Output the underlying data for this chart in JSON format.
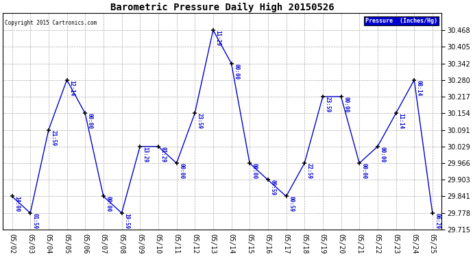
{
  "title": "Barometric Pressure Daily High 20150526",
  "legend_label": "Pressure  (Inches/Hg)",
  "copyright": "Copyright 2015 Cartronics.com",
  "x_labels": [
    "05/02",
    "05/03",
    "05/04",
    "05/05",
    "05/06",
    "05/07",
    "05/08",
    "05/09",
    "05/10",
    "05/11",
    "05/12",
    "05/13",
    "05/14",
    "05/15",
    "05/16",
    "05/17",
    "05/18",
    "05/19",
    "05/20",
    "05/21",
    "05/22",
    "05/23",
    "05/24",
    "05/25"
  ],
  "y_values": [
    29.841,
    29.778,
    30.091,
    30.28,
    30.154,
    29.841,
    29.778,
    30.029,
    30.029,
    29.966,
    30.154,
    30.468,
    30.342,
    29.966,
    29.903,
    29.841,
    29.966,
    30.217,
    30.217,
    29.966,
    30.029,
    30.154,
    30.28,
    29.778
  ],
  "point_labels": [
    "14:00",
    "01:59",
    "21:59",
    "12:14",
    "00:00",
    "00:00",
    "19:59",
    "13:29",
    "01:29",
    "00:00",
    "23:59",
    "11:29",
    "00:00",
    "00:00",
    "09:59",
    "00:59",
    "22:59",
    "23:59",
    "00:00",
    "00:00",
    "00:00",
    "11:14",
    "08:14",
    "06:29"
  ],
  "ylim_min": 29.715,
  "ylim_max": 30.531,
  "yticks": [
    29.715,
    29.778,
    29.841,
    29.903,
    29.966,
    30.029,
    30.091,
    30.154,
    30.217,
    30.28,
    30.342,
    30.405,
    30.468
  ],
  "line_color": "#0000cc",
  "marker_color": "#000000",
  "background_color": "#ffffff",
  "grid_color": "#aaaaaa",
  "title_color": "#000000",
  "label_color": "#0000cc",
  "copyright_color": "#000000",
  "legend_bg": "#0000cc",
  "legend_text_color": "#ffffff"
}
